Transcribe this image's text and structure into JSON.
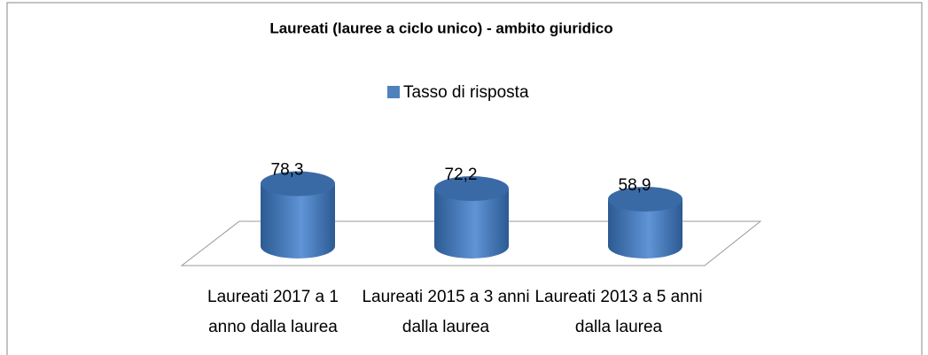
{
  "chart_data": {
    "type": "bar3d",
    "title": "Laureati (lauree a ciclo unico) - ambito giuridico",
    "categories": [
      "Laureati 2017 a 1 anno dalla laurea",
      "Laureati 2015 a 3 anni dalla laurea",
      "Laureati 2013 a 5 anni dalla laurea"
    ],
    "series": [
      {
        "name": "Tasso di risposta",
        "color": "#4f81bd",
        "values": [
          78.3,
          72.2,
          58.9
        ],
        "value_labels": [
          "78,3",
          "72,2",
          "58,9"
        ]
      }
    ],
    "ylim": [
      0,
      100
    ]
  }
}
